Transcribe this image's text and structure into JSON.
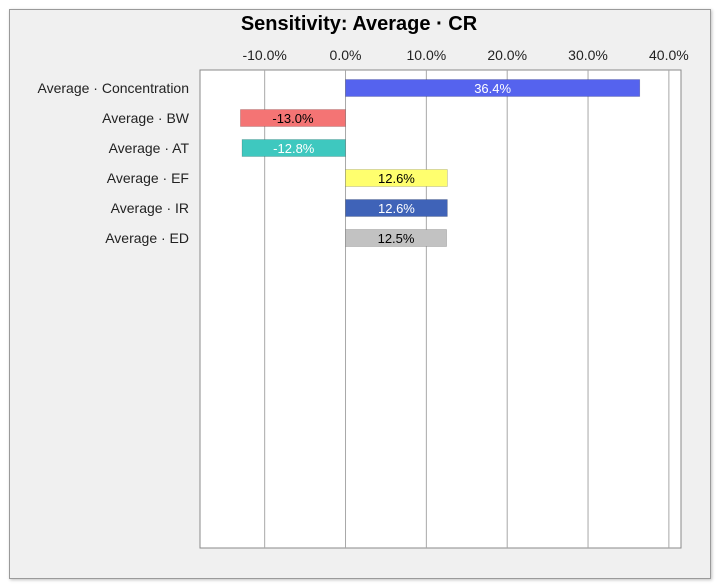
{
  "chart_data": {
    "type": "bar",
    "orientation": "horizontal",
    "title": "Sensitivity: Average · CR",
    "categories": [
      "Average · Concentration",
      "Average · BW",
      "Average · AT",
      "Average · EF",
      "Average · IR",
      "Average · ED"
    ],
    "values": [
      36.4,
      -13.0,
      -12.8,
      12.6,
      12.6,
      12.5
    ],
    "value_labels": [
      "36.4%",
      "-13.0%",
      "-12.8%",
      "12.6%",
      "12.6%",
      "12.5%"
    ],
    "colors": [
      "#5563ee",
      "#f47474",
      "#3ec8bf",
      "#ffff6e",
      "#3f63b8",
      "#c2c2c2"
    ],
    "label_colors": [
      "#ffffff",
      "#000000",
      "#ffffff",
      "#000000",
      "#ffffff",
      "#000000"
    ],
    "x_ticks": [
      -10,
      0,
      10,
      20,
      30,
      40
    ],
    "x_tick_labels": [
      "-10.0%",
      "0.0%",
      "10.0%",
      "20.0%",
      "30.0%",
      "40.0%"
    ],
    "xlim": [
      -18,
      41.5
    ],
    "grid": true,
    "legend": "none"
  }
}
